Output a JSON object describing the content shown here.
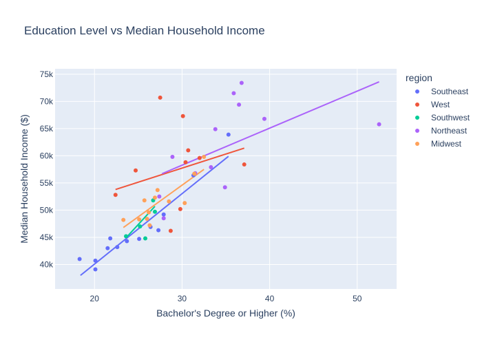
{
  "chart_data": {
    "type": "scatter",
    "title": "Education Level vs Median Household Income",
    "xlabel": "Bachelor's Degree or Higher (%)",
    "ylabel": "Median Household Income ($)",
    "xlim": [
      15.5,
      54.5
    ],
    "ylim": [
      35500,
      76000
    ],
    "xticks": [
      20,
      30,
      40,
      50
    ],
    "yticks": [
      40000,
      45000,
      50000,
      55000,
      60000,
      65000,
      70000,
      75000
    ],
    "ytick_labels": [
      "40k",
      "45k",
      "50k",
      "55k",
      "60k",
      "65k",
      "70k",
      "75k"
    ],
    "grid": true,
    "plot_background": "#e5ecf6",
    "legend": {
      "title": "region",
      "placement": "right"
    },
    "series": [
      {
        "name": "Southeast",
        "color": "#636efa",
        "points": [
          [
            18.3,
            41000
          ],
          [
            20.1,
            40700
          ],
          [
            20.1,
            39100
          ],
          [
            21.5,
            43000
          ],
          [
            21.8,
            44800
          ],
          [
            22.6,
            43200
          ],
          [
            23.7,
            44300
          ],
          [
            25.1,
            44700
          ],
          [
            26.4,
            46900
          ],
          [
            27.3,
            46300
          ],
          [
            27.9,
            49200
          ],
          [
            31.3,
            56400
          ],
          [
            35.3,
            63900
          ]
        ],
        "trend": [
          [
            18.4,
            38000
          ],
          [
            35.3,
            59900
          ]
        ]
      },
      {
        "name": "West",
        "color": "#ef553b",
        "points": [
          [
            22.4,
            52800
          ],
          [
            24.7,
            57300
          ],
          [
            27.5,
            70700
          ],
          [
            28.7,
            46200
          ],
          [
            29.8,
            50200
          ],
          [
            30.1,
            67300
          ],
          [
            30.4,
            58800
          ],
          [
            30.7,
            61000
          ],
          [
            32.0,
            59600
          ],
          [
            37.1,
            58400
          ]
        ],
        "trend": [
          [
            22.4,
            53800
          ],
          [
            37.1,
            61400
          ]
        ]
      },
      {
        "name": "Southwest",
        "color": "#00cc96",
        "points": [
          [
            23.6,
            45200
          ],
          [
            25.8,
            44800
          ],
          [
            26.7,
            51800
          ],
          [
            26.9,
            49700
          ],
          [
            25.2,
            47000
          ]
        ],
        "trend": [
          [
            23.6,
            44900
          ],
          [
            26.9,
            50700
          ]
        ]
      },
      {
        "name": "Northeast",
        "color": "#ab63fa",
        "points": [
          [
            27.4,
            52500
          ],
          [
            27.9,
            48500
          ],
          [
            28.9,
            59800
          ],
          [
            31.5,
            56800
          ],
          [
            33.3,
            57900
          ],
          [
            33.8,
            64900
          ],
          [
            34.9,
            54200
          ],
          [
            35.9,
            71500
          ],
          [
            36.5,
            69400
          ],
          [
            36.8,
            73400
          ],
          [
            39.4,
            66800
          ],
          [
            52.5,
            65800
          ]
        ],
        "trend": [
          [
            27.7,
            56700
          ],
          [
            52.5,
            73600
          ]
        ]
      },
      {
        "name": "Midwest",
        "color": "#ffa15a",
        "points": [
          [
            23.3,
            48200
          ],
          [
            25.1,
            48300
          ],
          [
            25.7,
            51800
          ],
          [
            26.0,
            48400
          ],
          [
            26.2,
            49600
          ],
          [
            26.3,
            47200
          ],
          [
            26.9,
            52300
          ],
          [
            27.2,
            53700
          ],
          [
            28.5,
            51600
          ],
          [
            30.3,
            51300
          ],
          [
            31.4,
            56700
          ],
          [
            32.5,
            59800
          ]
        ],
        "trend": [
          [
            23.3,
            46800
          ],
          [
            32.5,
            57500
          ]
        ]
      }
    ]
  }
}
